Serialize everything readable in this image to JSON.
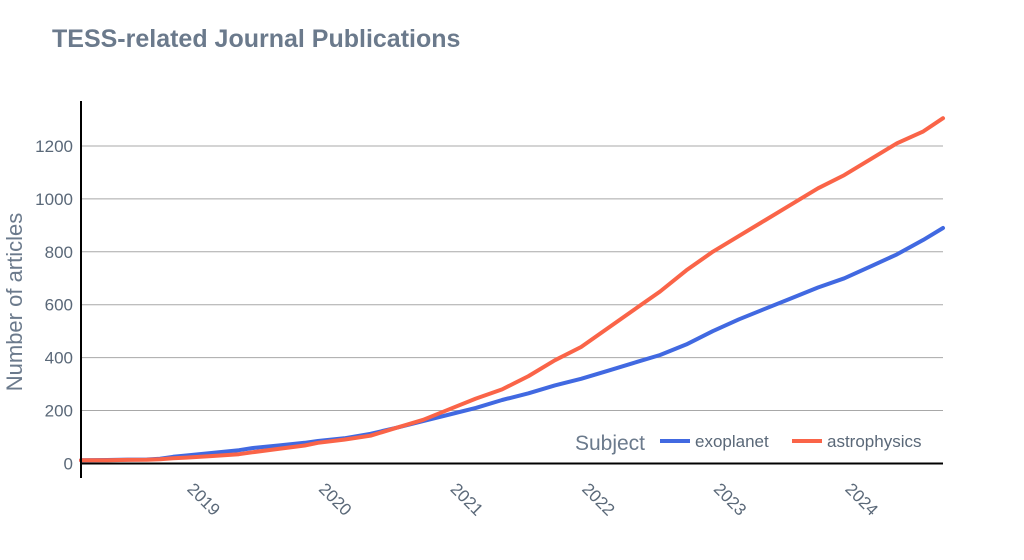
{
  "chart_data": {
    "type": "line",
    "title": "TESS-related Journal Publications",
    "xlabel": "",
    "ylabel": "Number of articles",
    "x_ticks": [
      "2019",
      "2020",
      "2021",
      "2022",
      "2023",
      "2024"
    ],
    "y_ticks": [
      0,
      200,
      400,
      600,
      800,
      1000,
      1200
    ],
    "xlim": [
      2018.2,
      2024.75
    ],
    "ylim": [
      -55,
      1370
    ],
    "grid": true,
    "legend": {
      "title": "Subject",
      "placement": "bottom-right"
    },
    "series": [
      {
        "name": "exoplanet",
        "color": "#4169e1",
        "x": [
          2018.2,
          2018.4,
          2018.5,
          2018.7,
          2018.8,
          2018.9,
          2019.0,
          2019.2,
          2019.4,
          2019.5,
          2019.7,
          2019.9,
          2020.0,
          2020.2,
          2020.4,
          2020.6,
          2020.8,
          2021.0,
          2021.2,
          2021.4,
          2021.6,
          2021.8,
          2022.0,
          2022.2,
          2022.4,
          2022.6,
          2022.8,
          2023.0,
          2023.2,
          2023.4,
          2023.6,
          2023.8,
          2024.0,
          2024.2,
          2024.4,
          2024.6,
          2024.75
        ],
        "y": [
          12,
          13,
          14,
          15,
          18,
          25,
          30,
          40,
          50,
          58,
          68,
          78,
          85,
          95,
          112,
          135,
          160,
          185,
          210,
          240,
          265,
          295,
          320,
          350,
          380,
          410,
          450,
          500,
          545,
          585,
          625,
          665,
          700,
          745,
          790,
          845,
          890
        ]
      },
      {
        "name": "astrophysics",
        "color": "#fa6448",
        "x": [
          2018.2,
          2018.4,
          2018.5,
          2018.7,
          2018.8,
          2018.9,
          2019.0,
          2019.2,
          2019.4,
          2019.5,
          2019.7,
          2019.9,
          2020.0,
          2020.2,
          2020.4,
          2020.6,
          2020.8,
          2021.0,
          2021.2,
          2021.4,
          2021.6,
          2021.8,
          2022.0,
          2022.2,
          2022.4,
          2022.6,
          2022.8,
          2023.0,
          2023.2,
          2023.4,
          2023.6,
          2023.8,
          2024.0,
          2024.2,
          2024.4,
          2024.6,
          2024.75
        ],
        "y": [
          12,
          12,
          13,
          14,
          16,
          20,
          22,
          28,
          35,
          42,
          55,
          68,
          78,
          90,
          105,
          135,
          165,
          205,
          245,
          280,
          330,
          390,
          440,
          510,
          580,
          650,
          730,
          800,
          860,
          920,
          980,
          1040,
          1090,
          1150,
          1210,
          1255,
          1305
        ]
      }
    ]
  }
}
